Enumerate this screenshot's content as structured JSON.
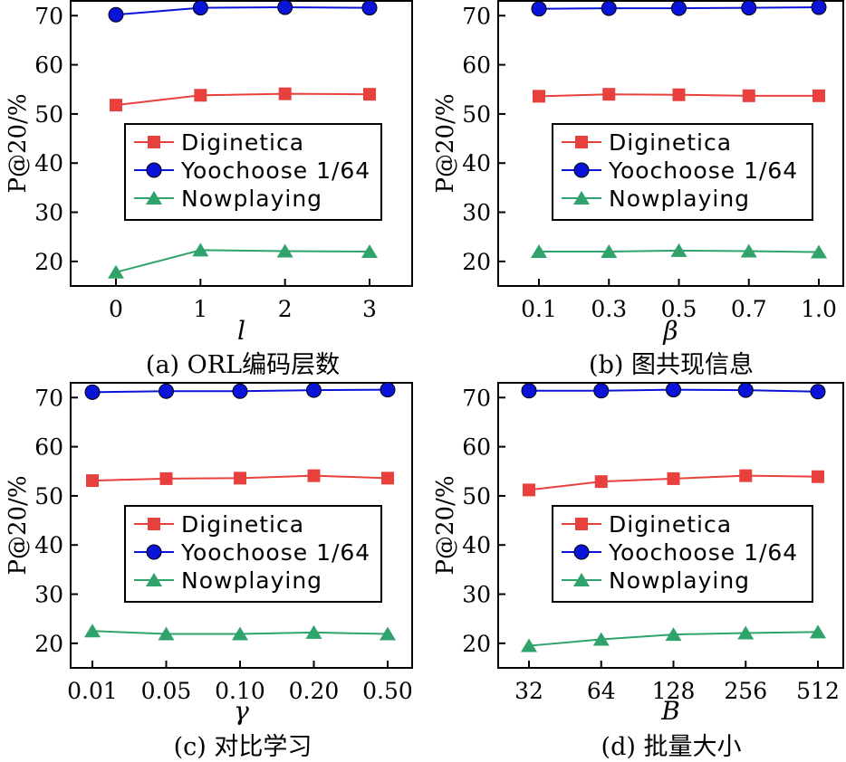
{
  "chart_data": [
    {
      "type": "line",
      "caption": "(a) ORL编码层数",
      "xlabel": "l",
      "ylabel": "P@20/%",
      "categories": [
        "0",
        "1",
        "2",
        "3"
      ],
      "ylim": [
        15,
        73
      ],
      "yticks": [
        20,
        30,
        40,
        50,
        60,
        70
      ],
      "grid": false,
      "legend_position": "center-right",
      "series": [
        {
          "name": "Diginetica",
          "color": "#e8403c",
          "marker": "square",
          "values": [
            51.8,
            53.8,
            54.1,
            54.0
          ]
        },
        {
          "name": "Yoochoose 1/64",
          "color": "#0a14d8",
          "marker": "circle",
          "values": [
            70.2,
            71.6,
            71.7,
            71.6
          ]
        },
        {
          "name": "Nowplaying",
          "color": "#2fa36b",
          "marker": "triangle",
          "values": [
            17.8,
            22.3,
            22.1,
            22.0
          ]
        }
      ]
    },
    {
      "type": "line",
      "caption": "(b) 图共现信息",
      "xlabel": "β",
      "ylabel": "P@20/%",
      "categories": [
        "0.1",
        "0.3",
        "0.5",
        "0.7",
        "1.0"
      ],
      "ylim": [
        15,
        73
      ],
      "yticks": [
        20,
        30,
        40,
        50,
        60,
        70
      ],
      "grid": false,
      "legend_position": "center-right",
      "series": [
        {
          "name": "Diginetica",
          "color": "#e8403c",
          "marker": "square",
          "values": [
            53.6,
            54.0,
            53.9,
            53.7,
            53.7
          ]
        },
        {
          "name": "Yoochoose 1/64",
          "color": "#0a14d8",
          "marker": "circle",
          "values": [
            71.4,
            71.5,
            71.5,
            71.6,
            71.7
          ]
        },
        {
          "name": "Nowplaying",
          "color": "#2fa36b",
          "marker": "triangle",
          "values": [
            22.0,
            22.0,
            22.2,
            22.1,
            21.9
          ]
        }
      ]
    },
    {
      "type": "line",
      "caption": "(c) 对比学习",
      "xlabel": "γ",
      "ylabel": "P@20/%",
      "categories": [
        "0.01",
        "0.05",
        "0.10",
        "0.20",
        "0.50"
      ],
      "ylim": [
        15,
        73
      ],
      "yticks": [
        20,
        30,
        40,
        50,
        60,
        70
      ],
      "grid": false,
      "legend_position": "center-right",
      "series": [
        {
          "name": "Diginetica",
          "color": "#e8403c",
          "marker": "square",
          "values": [
            53.1,
            53.5,
            53.6,
            54.1,
            53.6
          ]
        },
        {
          "name": "Yoochoose 1/64",
          "color": "#0a14d8",
          "marker": "circle",
          "values": [
            71.1,
            71.3,
            71.3,
            71.5,
            71.6
          ]
        },
        {
          "name": "Nowplaying",
          "color": "#2fa36b",
          "marker": "triangle",
          "values": [
            22.5,
            21.9,
            21.9,
            22.2,
            21.9
          ]
        }
      ]
    },
    {
      "type": "line",
      "caption": "(d) 批量大小",
      "xlabel": "B",
      "ylabel": "P@20/%",
      "categories": [
        "32",
        "64",
        "128",
        "256",
        "512"
      ],
      "ylim": [
        15,
        73
      ],
      "yticks": [
        20,
        30,
        40,
        50,
        60,
        70
      ],
      "grid": false,
      "legend_position": "center-right",
      "series": [
        {
          "name": "Diginetica",
          "color": "#e8403c",
          "marker": "square",
          "values": [
            51.2,
            52.9,
            53.5,
            54.1,
            53.9
          ]
        },
        {
          "name": "Yoochoose 1/64",
          "color": "#0a14d8",
          "marker": "circle",
          "values": [
            71.4,
            71.4,
            71.6,
            71.5,
            71.2
          ]
        },
        {
          "name": "Nowplaying",
          "color": "#2fa36b",
          "marker": "triangle",
          "values": [
            19.5,
            20.8,
            21.8,
            22.1,
            22.3
          ]
        }
      ]
    }
  ]
}
